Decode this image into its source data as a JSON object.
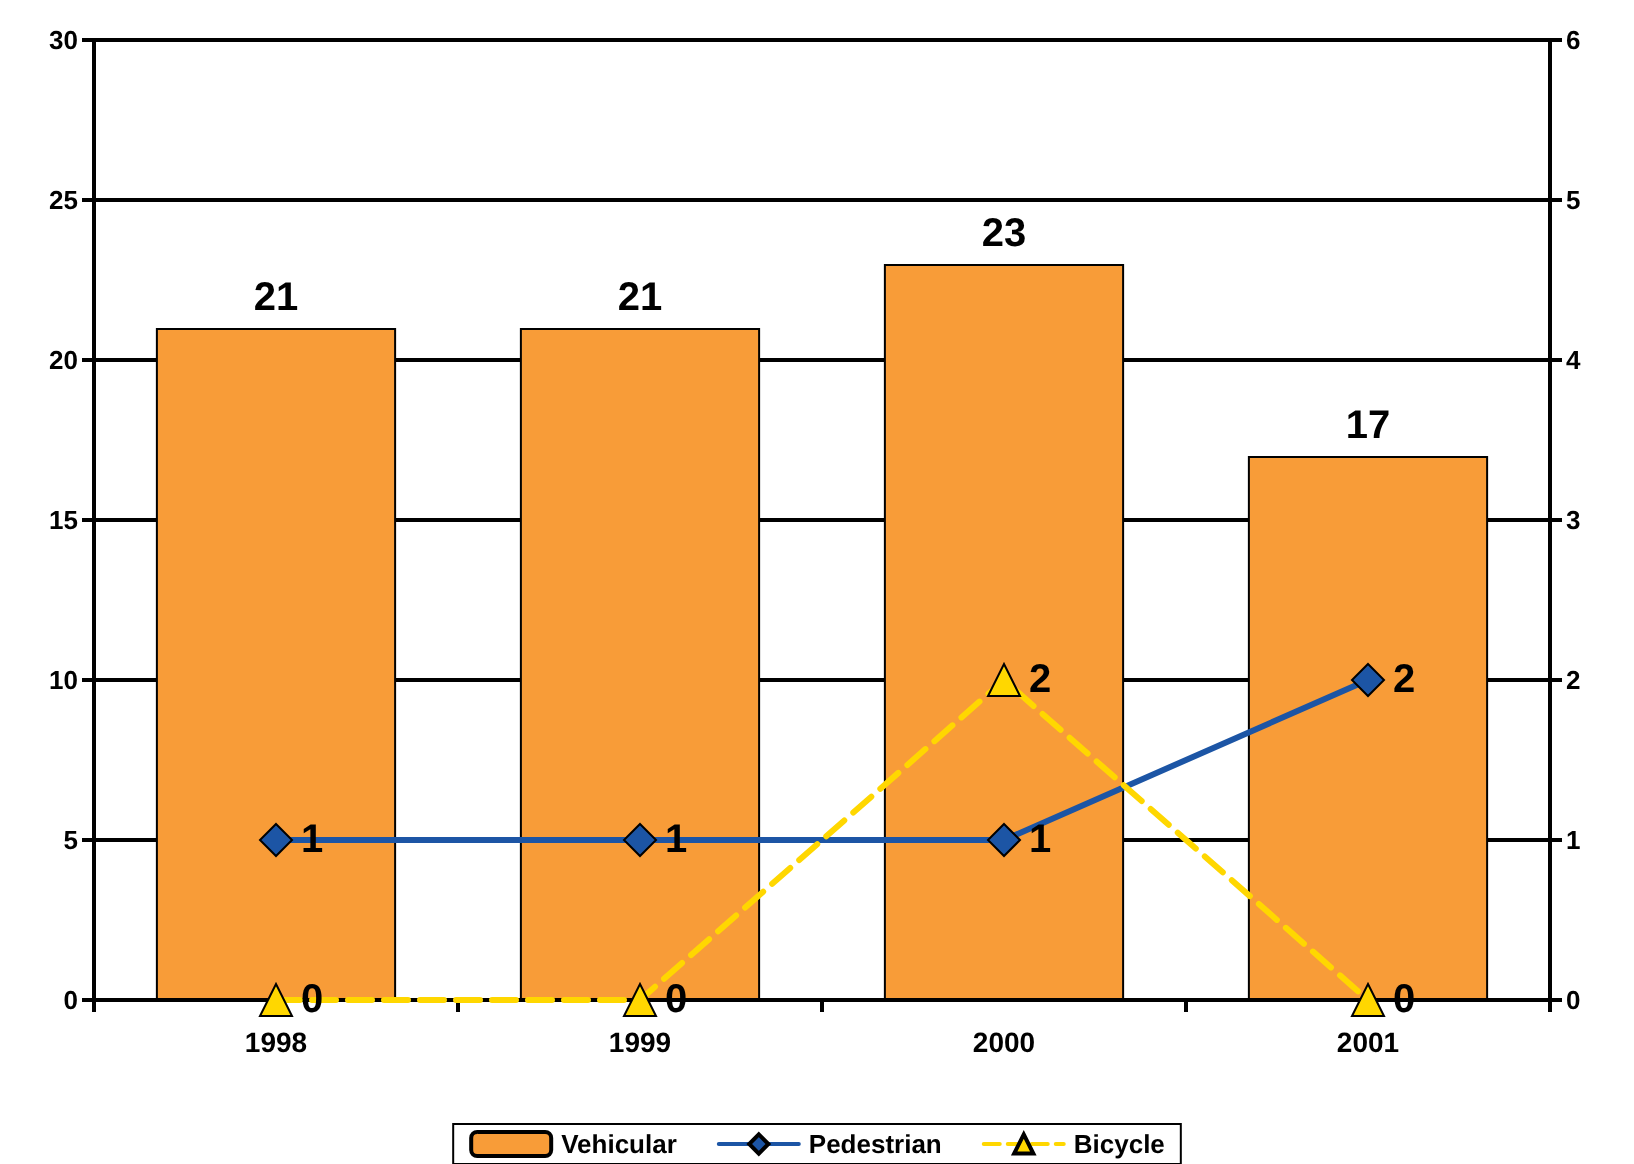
{
  "chart_data": {
    "type": "bar",
    "categories": [
      "1998",
      "1999",
      "2000",
      "2001"
    ],
    "series": [
      {
        "name": "Vehicular",
        "color": "#f89c38",
        "values": [
          21,
          21,
          23,
          17
        ]
      },
      {
        "name": "Pedestrian",
        "type": "line",
        "axis": "y2",
        "color": "#1c55a5",
        "marker": "diamond",
        "line_style": "solid",
        "values": [
          1,
          1,
          1,
          2
        ]
      },
      {
        "name": "Bicycle",
        "type": "line",
        "axis": "y2",
        "color": "#ffd700",
        "marker": "triangle",
        "line_style": "dashed",
        "values": [
          0,
          0,
          2,
          0
        ]
      }
    ],
    "ylim": [
      0,
      30
    ],
    "yticks": [
      0,
      5,
      10,
      15,
      20,
      25,
      30
    ],
    "y2lim": [
      0,
      6
    ],
    "y2ticks": [
      0,
      1,
      2,
      3,
      4,
      5,
      6
    ],
    "grid": "y",
    "legend": "bottom",
    "data_labels": true
  }
}
